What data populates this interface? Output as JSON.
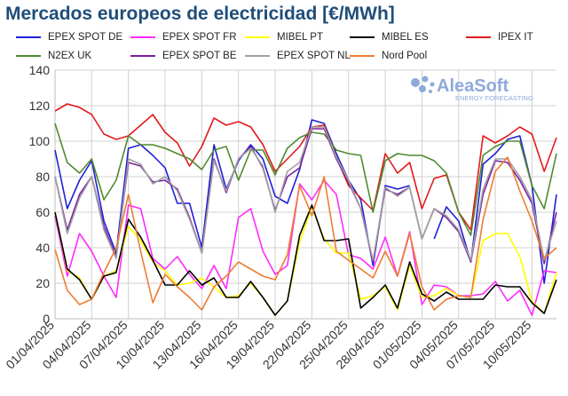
{
  "title": "Mercados europeos de electricidad [€/MWh]",
  "logo": {
    "name": "AleaSoft",
    "tagline": "ENERGY FORECASTING",
    "color": "#8eaadb",
    "icon": "aleasoft-logo-icon"
  },
  "chart_data": {
    "type": "line",
    "title": "Mercados europeos de electricidad [€/MWh]",
    "xlabel": "",
    "ylabel": "",
    "ylim": [
      0,
      140
    ],
    "yticks": [
      "0",
      "20",
      "40",
      "60",
      "80",
      "100",
      "120",
      "140"
    ],
    "grid": true,
    "legend_position": "top",
    "x": [
      "01/04/2025",
      "02/04/2025",
      "03/04/2025",
      "04/04/2025",
      "05/04/2025",
      "06/04/2025",
      "07/04/2025",
      "08/04/2025",
      "09/04/2025",
      "10/04/2025",
      "11/04/2025",
      "12/04/2025",
      "13/04/2025",
      "14/04/2025",
      "15/04/2025",
      "16/04/2025",
      "17/04/2025",
      "18/04/2025",
      "19/04/2025",
      "20/04/2025",
      "21/04/2025",
      "22/04/2025",
      "23/04/2025",
      "24/04/2025",
      "25/04/2025",
      "26/04/2025",
      "27/04/2025",
      "28/04/2025",
      "29/04/2025",
      "30/04/2025",
      "01/05/2025",
      "02/05/2025",
      "03/05/2025",
      "04/05/2025",
      "05/05/2025",
      "06/05/2025",
      "07/05/2025",
      "08/05/2025",
      "09/05/2025",
      "10/05/2025",
      "11/05/2025",
      "12/05/2025"
    ],
    "x_tick_labels": [
      "01/04/2025",
      "04/04/2025",
      "07/04/2025",
      "10/04/2025",
      "13/04/2025",
      "16/04/2025",
      "19/04/2025",
      "22/04/2025",
      "25/04/2025",
      "28/04/2025",
      "01/05/2025",
      "04/05/2025",
      "07/05/2025",
      "10/05/2025"
    ],
    "series": [
      {
        "name": "EPEX SPOT DE",
        "color": "#1f1fd6",
        "values": [
          95,
          62,
          78,
          89,
          55,
          37,
          96,
          98,
          92,
          85,
          65,
          65,
          40,
          98,
          73,
          89,
          98,
          90,
          69,
          65,
          84,
          112,
          110,
          93,
          78,
          67,
          30,
          75,
          73,
          75,
          null,
          45,
          63,
          55,
          32,
          87,
          93,
          101,
          103,
          75,
          20,
          70
        ]
      },
      {
        "name": "EPEX SPOT FR",
        "color": "#ff2bff",
        "values": [
          58,
          24,
          48,
          38,
          24,
          12,
          64,
          62,
          34,
          28,
          35,
          25,
          17,
          30,
          17,
          57,
          62,
          38,
          25,
          30,
          76,
          67,
          78,
          70,
          36,
          34,
          28,
          46,
          24,
          49,
          8,
          19,
          18,
          13,
          13,
          14,
          21,
          10,
          16,
          2,
          27,
          26
        ]
      },
      {
        "name": "MIBEL PT",
        "color": "#ffff00",
        "values": [
          60,
          27,
          23,
          11,
          24,
          27,
          52,
          44,
          32,
          27,
          19,
          20,
          23,
          18,
          12,
          13,
          20,
          12,
          2,
          10,
          43,
          63,
          45,
          37,
          37,
          11,
          13,
          18,
          5,
          30,
          12,
          13,
          17,
          13,
          12,
          44,
          48,
          48,
          35,
          10,
          3,
          26
        ]
      },
      {
        "name": "MIBEL ES",
        "color": "#000000",
        "values": [
          60,
          28,
          22,
          11,
          24,
          26,
          56,
          46,
          33,
          19,
          19,
          27,
          19,
          23,
          12,
          12,
          21,
          12,
          2,
          10,
          47,
          64,
          44,
          44,
          45,
          6,
          12,
          19,
          6,
          32,
          14,
          10,
          15,
          11,
          11,
          11,
          19,
          18,
          18,
          9,
          3,
          22
        ]
      },
      {
        "name": "IPEX IT",
        "color": "#e31a1c",
        "values": [
          117,
          121,
          119,
          115,
          104,
          101,
          103,
          109,
          115,
          105,
          99,
          86,
          97,
          113,
          109,
          111,
          108,
          98,
          83,
          90,
          97,
          108,
          109,
          91,
          75,
          68,
          61,
          93,
          82,
          88,
          62,
          79,
          81,
          60,
          50,
          103,
          99,
          103,
          108,
          104,
          83,
          102
        ]
      },
      {
        "name": "N2EX UK",
        "color": "#4f8a2e",
        "values": [
          110,
          88,
          82,
          90,
          67,
          78,
          103,
          98,
          98,
          96,
          93,
          90,
          84,
          95,
          97,
          78,
          95,
          95,
          81,
          96,
          102,
          105,
          104,
          95,
          93,
          92,
          60,
          89,
          93,
          92,
          92,
          89,
          82,
          60,
          47,
          92,
          97,
          100,
          100,
          75,
          62,
          93
        ]
      },
      {
        "name": "EPEX SPOT BE",
        "color": "#7b1fa2",
        "values": [
          80,
          50,
          70,
          80,
          52,
          35,
          88,
          86,
          77,
          78,
          73,
          57,
          37,
          90,
          71,
          90,
          97,
          85,
          61,
          80,
          85,
          107,
          107,
          90,
          77,
          62,
          32,
          73,
          70,
          74,
          45,
          62,
          57,
          49,
          32,
          70,
          89,
          88,
          78,
          65,
          31,
          60
        ]
      },
      {
        "name": "EPEX SPOT NL",
        "color": "#a0a0a0",
        "values": [
          80,
          48,
          68,
          80,
          50,
          34,
          90,
          87,
          76,
          80,
          72,
          56,
          37,
          89,
          72,
          90,
          96,
          86,
          60,
          83,
          88,
          108,
          108,
          91,
          78,
          62,
          33,
          74,
          69,
          74,
          45,
          62,
          58,
          50,
          33,
          73,
          90,
          90,
          80,
          67,
          33,
          55
        ]
      },
      {
        "name": "Nord Pool",
        "color": "#ed7d31",
        "values": [
          39,
          16,
          8,
          11,
          26,
          40,
          70,
          38,
          9,
          25,
          18,
          12,
          5,
          18,
          24,
          32,
          28,
          24,
          22,
          36,
          75,
          58,
          80,
          38,
          33,
          28,
          23,
          38,
          24,
          48,
          18,
          5,
          11,
          13,
          12,
          56,
          83,
          91,
          72,
          55,
          34,
          40
        ]
      }
    ]
  }
}
